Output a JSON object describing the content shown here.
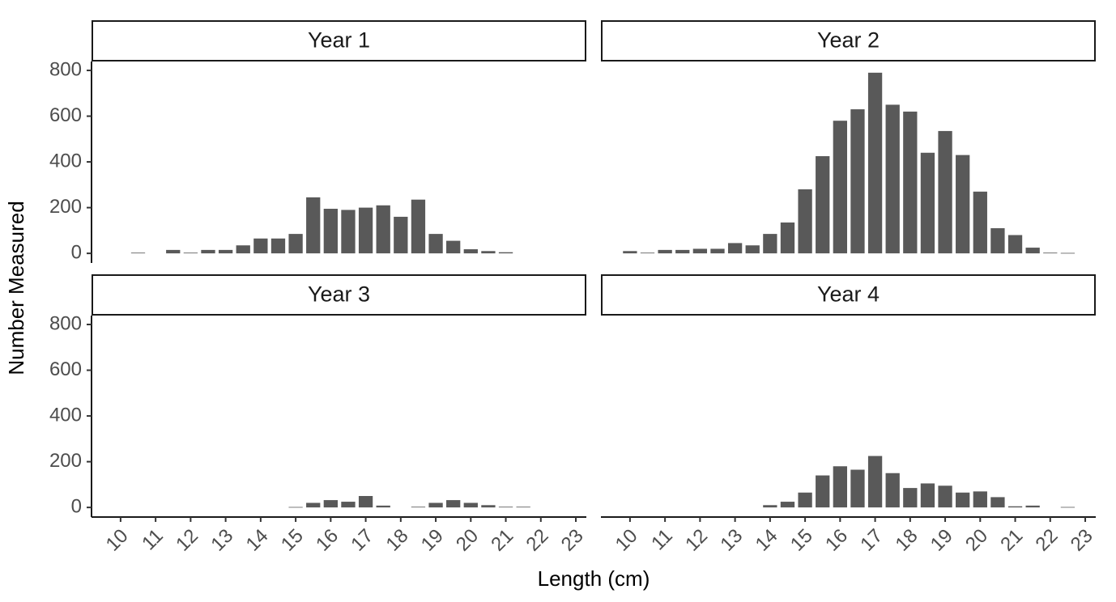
{
  "chart_data": {
    "type": "bar",
    "x_label": "Length (cm)",
    "y_label": "Number Measured",
    "x": [
      10,
      10.5,
      11,
      11.5,
      12,
      12.5,
      13,
      13.5,
      14,
      14.5,
      15,
      15.5,
      16,
      16.5,
      17,
      17.5,
      18,
      18.5,
      19,
      19.5,
      20,
      20.5,
      21,
      21.5,
      22,
      22.5
    ],
    "series": [
      {
        "name": "Year 1",
        "color": "#595959",
        "values": [
          null,
          3,
          null,
          15,
          3,
          15,
          15,
          35,
          65,
          65,
          85,
          245,
          195,
          190,
          200,
          210,
          160,
          235,
          85,
          55,
          18,
          10,
          5,
          null,
          null,
          null
        ]
      },
      {
        "name": "Year 2",
        "color": "#595959",
        "values": [
          10,
          3,
          15,
          15,
          20,
          20,
          45,
          35,
          85,
          135,
          280,
          425,
          580,
          630,
          790,
          650,
          620,
          440,
          535,
          430,
          270,
          110,
          80,
          25,
          3,
          2
        ]
      },
      {
        "name": "Year 3",
        "color": "#595959",
        "values": [
          null,
          null,
          null,
          null,
          null,
          null,
          null,
          null,
          null,
          null,
          2,
          20,
          32,
          25,
          50,
          8,
          null,
          3,
          20,
          32,
          20,
          10,
          3,
          3,
          null,
          null
        ]
      },
      {
        "name": "Year 4",
        "color": "#595959",
        "values": [
          null,
          null,
          null,
          null,
          null,
          null,
          null,
          null,
          10,
          25,
          65,
          140,
          180,
          165,
          225,
          150,
          85,
          105,
          95,
          65,
          70,
          45,
          5,
          8,
          null,
          2
        ]
      }
    ],
    "xlim": [
      9.17,
      23.3
    ],
    "ylim": [
      -42,
      839
    ],
    "xticks": [
      10,
      11,
      12,
      13,
      14,
      15,
      16,
      17,
      18,
      19,
      20,
      21,
      22,
      23
    ],
    "yticks": [
      0,
      200,
      400,
      600,
      800
    ],
    "grid": false
  }
}
